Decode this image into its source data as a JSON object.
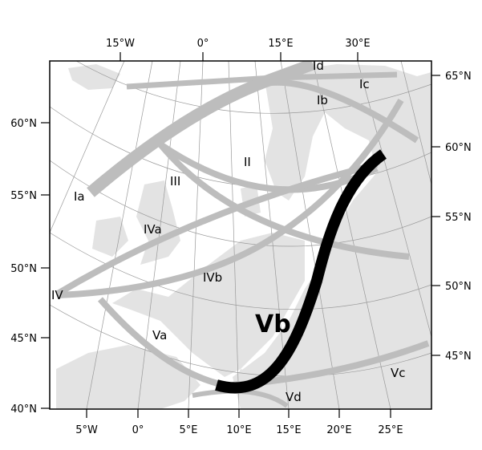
{
  "map": {
    "colors": {
      "land": "#e3e3e3",
      "sea": "#ffffff",
      "track": "#bdbdbd",
      "highlight_track": "#000000",
      "graticule": "#999999"
    },
    "top_lon_ticks": [
      "15°W",
      "0°",
      "15°E",
      "30°E"
    ],
    "bottom_lon_ticks": [
      "5°W",
      "0°",
      "5°E",
      "10°E",
      "15°E",
      "20°E",
      "25°E"
    ],
    "left_lat_ticks": [
      "60°N",
      "55°N",
      "50°N",
      "45°N",
      "40°N"
    ],
    "right_lat_ticks": [
      "65°N",
      "60°N",
      "55°N",
      "50°N",
      "45°N"
    ],
    "tracks": [
      {
        "label": "Ia"
      },
      {
        "label": "Ib"
      },
      {
        "label": "Ic"
      },
      {
        "label": "Id"
      },
      {
        "label": "II"
      },
      {
        "label": "III"
      },
      {
        "label": "IV"
      },
      {
        "label": "IVa"
      },
      {
        "label": "IVb"
      },
      {
        "label": "Va"
      },
      {
        "label": "Vb",
        "highlighted": true
      },
      {
        "label": "Vc"
      },
      {
        "label": "Vd"
      }
    ]
  }
}
